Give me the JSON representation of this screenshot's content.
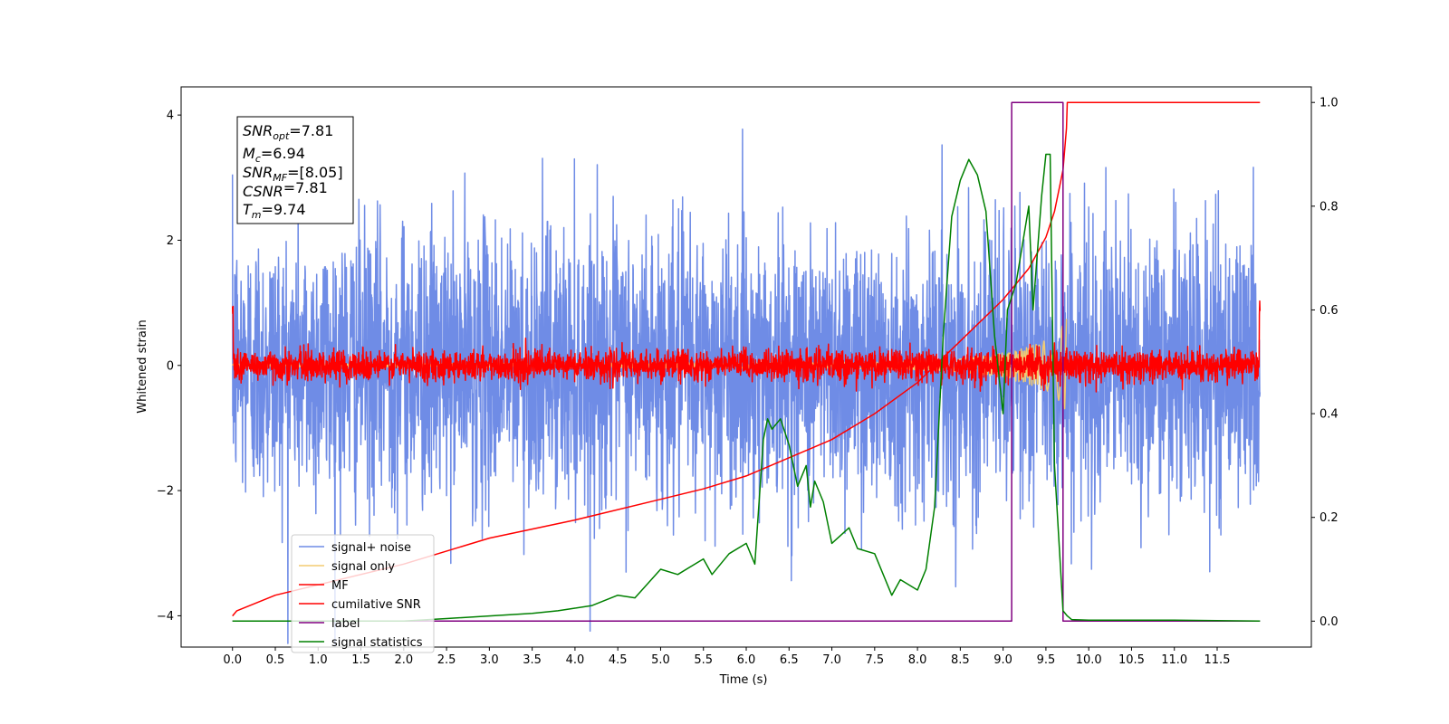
{
  "chart_data": {
    "type": "line",
    "xlabel": "Time (s)",
    "ylabel_left": "Whitened strain",
    "ylabel_right": "",
    "x_range": [
      -0.6,
      12.6
    ],
    "y_left_range": [
      -4.5,
      4.45
    ],
    "y_right_range": [
      -0.05,
      1.03
    ],
    "x_ticks": [
      "0.0",
      "0.5",
      "1.0",
      "1.5",
      "2.0",
      "2.5",
      "3.0",
      "3.5",
      "4.0",
      "4.5",
      "5.0",
      "5.5",
      "6.0",
      "6.5",
      "7.0",
      "7.5",
      "8.0",
      "8.5",
      "9.0",
      "9.5",
      "10.0",
      "10.5",
      "11.0",
      "11.5"
    ],
    "y_left_ticks": [
      "−4",
      "−2",
      "0",
      "2",
      "4"
    ],
    "y_right_ticks": [
      "0.0",
      "0.2",
      "0.4",
      "0.6",
      "0.8",
      "1.0"
    ],
    "grid": false,
    "legend_position": "lower-left",
    "annotation": {
      "lines": [
        {
          "sym": "SNR",
          "sub": "opt",
          "value": "=7.81"
        },
        {
          "sym": "M",
          "sub": "c",
          "value": "=6.94"
        },
        {
          "sym": "SNR",
          "sub": "MF",
          "value": "=[8.05]"
        },
        {
          "sym": "CSNR",
          "sub": "",
          "value": "=7.81"
        },
        {
          "sym": "T",
          "sub": "m",
          "value": "=9.74"
        }
      ]
    },
    "series": [
      {
        "name": "signal+ noise",
        "color": "#6f8ce6",
        "axis": "left",
        "kind": "noise",
        "std": 1.1,
        "x_start": 0.0,
        "x_end": 12.0
      },
      {
        "name": "signal only",
        "color": "#f4cc70",
        "axis": "left",
        "kind": "chirp",
        "envelope": {
          "x": [
            0.0,
            7.5,
            8.5,
            9.0,
            9.3,
            9.6,
            9.74
          ],
          "y": [
            0.02,
            0.05,
            0.1,
            0.2,
            0.3,
            0.45,
            0.75
          ]
        }
      },
      {
        "name": "MF",
        "color": "#ff0000",
        "axis": "left",
        "kind": "mf_noise",
        "std": 0.12,
        "x_start": 0.0,
        "x_end": 12.0
      },
      {
        "name": "cumilative SNR",
        "color": "#ff0000",
        "axis": "right",
        "x": [
          0.0,
          0.05,
          0.5,
          1.0,
          2.0,
          3.0,
          4.0,
          5.0,
          5.5,
          6.0,
          6.5,
          7.0,
          7.5,
          8.0,
          8.5,
          9.0,
          9.3,
          9.5,
          9.6,
          9.7,
          9.74,
          9.75,
          12.0
        ],
        "y": [
          0.01,
          0.02,
          0.05,
          0.07,
          0.11,
          0.16,
          0.195,
          0.235,
          0.255,
          0.28,
          0.315,
          0.35,
          0.4,
          0.46,
          0.54,
          0.62,
          0.68,
          0.74,
          0.79,
          0.87,
          0.95,
          1.0,
          1.0
        ]
      },
      {
        "name": "label",
        "color": "#800080",
        "axis": "right",
        "x": [
          0.0,
          9.1,
          9.1,
          9.7,
          9.7,
          12.0
        ],
        "y": [
          0.0,
          0.0,
          1.0,
          1.0,
          0.0,
          0.0
        ]
      },
      {
        "name": "signal statistics",
        "color": "#008000",
        "axis": "right",
        "x": [
          0.0,
          1.0,
          2.0,
          2.5,
          3.0,
          3.5,
          3.8,
          4.0,
          4.2,
          4.5,
          4.7,
          5.0,
          5.2,
          5.5,
          5.6,
          5.8,
          6.0,
          6.1,
          6.2,
          6.25,
          6.3,
          6.4,
          6.5,
          6.6,
          6.7,
          6.75,
          6.8,
          6.9,
          7.0,
          7.2,
          7.3,
          7.5,
          7.7,
          7.8,
          8.0,
          8.1,
          8.2,
          8.3,
          8.4,
          8.5,
          8.6,
          8.7,
          8.8,
          8.9,
          9.0,
          9.05,
          9.15,
          9.3,
          9.35,
          9.45,
          9.5,
          9.55,
          9.6,
          9.7,
          9.75,
          9.8,
          10.0,
          11.0,
          12.0
        ],
        "y": [
          0.0,
          0.0,
          0.0,
          0.005,
          0.01,
          0.015,
          0.02,
          0.025,
          0.03,
          0.05,
          0.045,
          0.1,
          0.09,
          0.12,
          0.09,
          0.13,
          0.15,
          0.11,
          0.35,
          0.39,
          0.37,
          0.39,
          0.34,
          0.26,
          0.3,
          0.22,
          0.27,
          0.23,
          0.15,
          0.18,
          0.14,
          0.13,
          0.05,
          0.08,
          0.06,
          0.1,
          0.22,
          0.55,
          0.78,
          0.85,
          0.89,
          0.86,
          0.79,
          0.55,
          0.4,
          0.6,
          0.65,
          0.8,
          0.6,
          0.82,
          0.9,
          0.9,
          0.3,
          0.02,
          0.01,
          0.003,
          0.002,
          0.002,
          0.0
        ]
      }
    ]
  }
}
